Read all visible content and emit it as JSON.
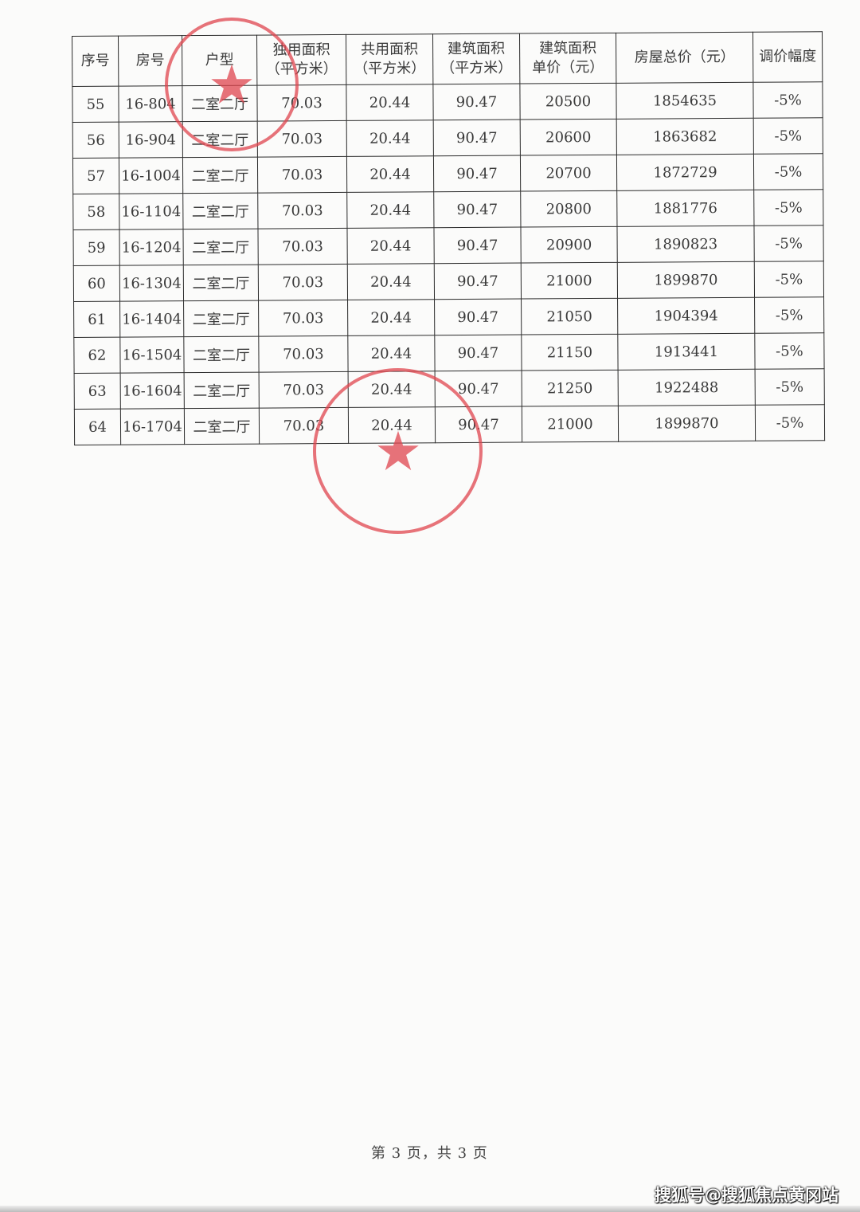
{
  "table": {
    "headers": [
      "序号",
      "房号",
      "户型",
      "独用面积\n（平方米）",
      "共用面积\n（平方米）",
      "建筑面积\n（平方米）",
      "建筑面积\n单价（元）",
      "房屋总价（元）",
      "调价幅度"
    ],
    "rows": [
      [
        "55",
        "16-804",
        "二室二厅",
        "70.03",
        "20.44",
        "90.47",
        "20500",
        "1854635",
        "-5%"
      ],
      [
        "56",
        "16-904",
        "二室二厅",
        "70.03",
        "20.44",
        "90.47",
        "20600",
        "1863682",
        "-5%"
      ],
      [
        "57",
        "16-1004",
        "二室二厅",
        "70.03",
        "20.44",
        "90.47",
        "20700",
        "1872729",
        "-5%"
      ],
      [
        "58",
        "16-1104",
        "二室二厅",
        "70.03",
        "20.44",
        "90.47",
        "20800",
        "1881776",
        "-5%"
      ],
      [
        "59",
        "16-1204",
        "二室二厅",
        "70.03",
        "20.44",
        "90.47",
        "20900",
        "1890823",
        "-5%"
      ],
      [
        "60",
        "16-1304",
        "二室二厅",
        "70.03",
        "20.44",
        "90.47",
        "21000",
        "1899870",
        "-5%"
      ],
      [
        "61",
        "16-1404",
        "二室二厅",
        "70.03",
        "20.44",
        "90.47",
        "21050",
        "1904394",
        "-5%"
      ],
      [
        "62",
        "16-1504",
        "二室二厅",
        "70.03",
        "20.44",
        "90.47",
        "21150",
        "1913441",
        "-5%"
      ],
      [
        "63",
        "16-1604",
        "二室二厅",
        "70.03",
        "20.44",
        "90.47",
        "21250",
        "1922488",
        "-5%"
      ],
      [
        "64",
        "16-1704",
        "二室二厅",
        "70.03",
        "20.44",
        "90.47",
        "21000",
        "1899870",
        "-5%"
      ]
    ]
  },
  "footer": {
    "page_label": "第 3 页，共 3 页"
  },
  "watermark": "搜狐号@搜狐焦点黄冈站",
  "colors": {
    "seal": "#e0454e"
  }
}
